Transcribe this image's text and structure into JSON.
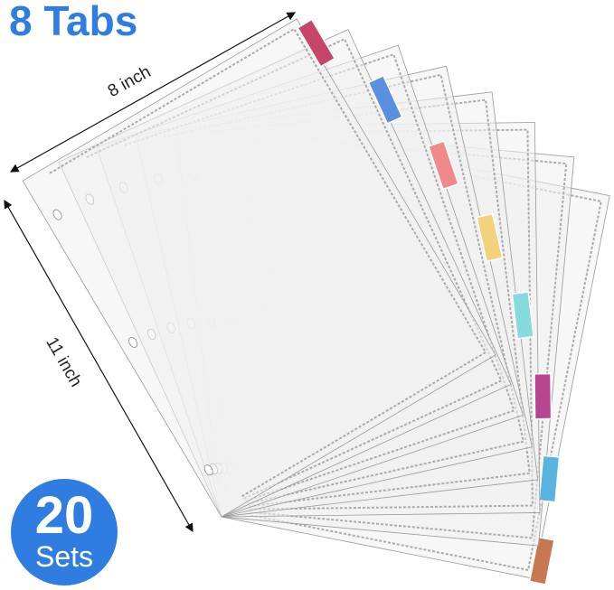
{
  "title": "8 Tabs",
  "badge": {
    "number": "20",
    "label": "Sets"
  },
  "dimensions": {
    "width": "8 inch",
    "height": "11 inch"
  },
  "tab_colors": [
    "#c8456a",
    "#5b8fe0",
    "#f08a8a",
    "#f2d27a",
    "#86d9dc",
    "#b8458f",
    "#5ab4e0",
    "#c87850"
  ],
  "colors": {
    "accent": "#2f7de1"
  }
}
